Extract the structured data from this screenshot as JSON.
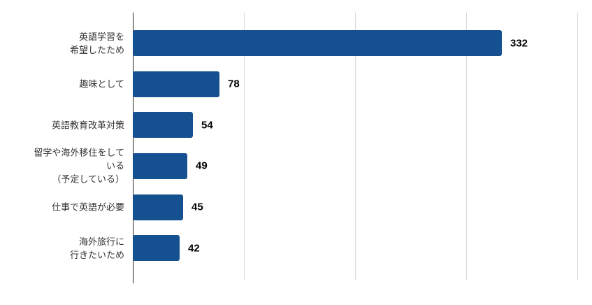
{
  "chart_data": {
    "type": "bar",
    "orientation": "horizontal",
    "title": "",
    "xlabel": "",
    "ylabel": "",
    "categories": [
      "英語学習を\n希望したため",
      "趣味として",
      "英語教育改革対策",
      "留学や海外移住をして\nいる\n（予定している）",
      "仕事で英語が必要",
      "海外旅行に\n行きたいため"
    ],
    "values": [
      332,
      78,
      54,
      49,
      45,
      42
    ],
    "xlim": [
      0,
      400
    ],
    "gridline_interval": 100,
    "grid": true,
    "legend": false,
    "data_labels": true,
    "colors": {
      "bar": "#155091",
      "gridline": "#d9d9d9",
      "axis": "#262626",
      "category_label": "#333333",
      "value_label": "#000000",
      "background": "#ffffff"
    }
  }
}
